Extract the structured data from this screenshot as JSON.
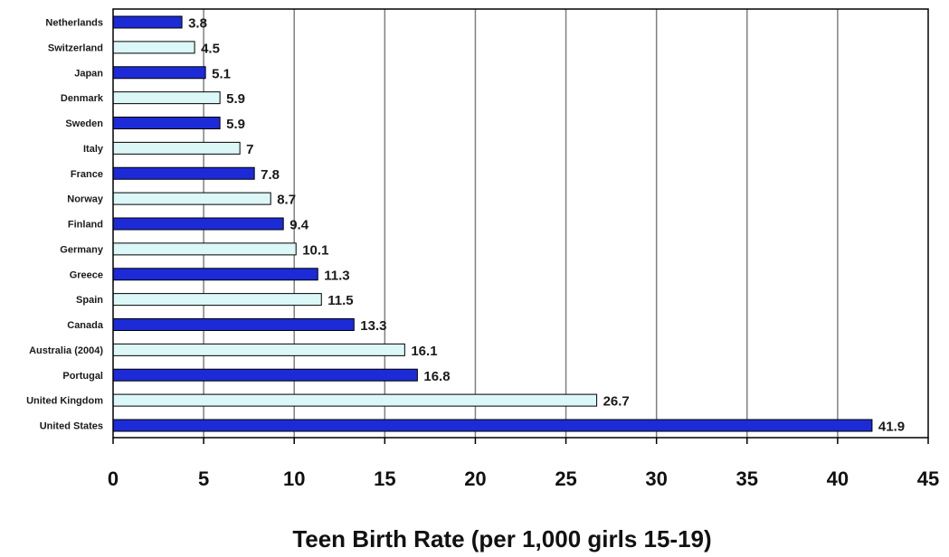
{
  "chart_data": {
    "type": "bar",
    "orientation": "horizontal",
    "title": "",
    "xlabel": "Teen Birth Rate (per 1,000 girls 15-19)",
    "ylabel": "",
    "xlim": [
      0,
      45
    ],
    "xticks": [
      0,
      5,
      10,
      15,
      20,
      25,
      30,
      35,
      40,
      45
    ],
    "grid": true,
    "legend": "none",
    "categories": [
      "Netherlands",
      "Switzerland",
      "Japan",
      "Denmark",
      "Sweden",
      "Italy",
      "France",
      "Norway",
      "Finland",
      "Germany",
      "Greece",
      "Spain",
      "Canada",
      "Australia (2004)",
      "Portugal",
      "United Kingdom",
      "United States"
    ],
    "values": [
      3.8,
      4.5,
      5.1,
      5.9,
      5.9,
      7,
      7.8,
      8.7,
      9.4,
      10.1,
      11.3,
      11.5,
      13.3,
      16.1,
      16.8,
      26.7,
      41.9
    ],
    "value_labels": [
      "3.8",
      "4.5",
      "5.1",
      "5.9",
      "5.9",
      "7",
      "7.8",
      "8.7",
      "9.4",
      "10.1",
      "11.3",
      "11.5",
      "13.3",
      "16.1",
      "16.8",
      "26.7",
      "41.9"
    ],
    "colors": {
      "dark": "#1c2bd6",
      "light": "#dcf7f7",
      "bar_outline": "#000000",
      "grid": "#808080"
    }
  }
}
